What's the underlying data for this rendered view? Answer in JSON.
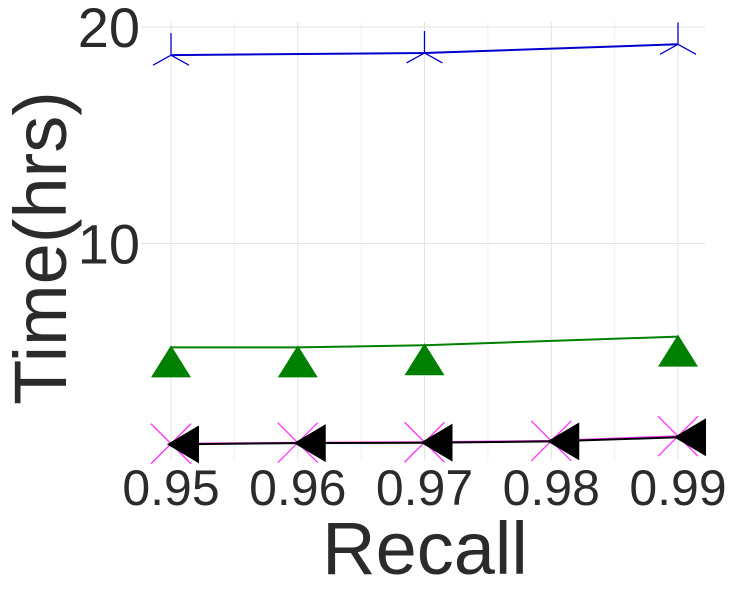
{
  "chart_data": {
    "type": "line",
    "title": "",
    "xlabel": "Recall",
    "ylabel": "Time(hrs)",
    "xlim": [
      0.95,
      0.99
    ],
    "ylim": [
      0,
      20
    ],
    "x_ticks": [
      "0.95",
      "0.96",
      "0.97",
      "0.98",
      "0.99"
    ],
    "y_ticks": [
      "10",
      "20"
    ],
    "grid": true,
    "legend": "none",
    "series": [
      {
        "color": "#0000cc",
        "marker": "tri-star",
        "x": [
          0.95,
          0.97,
          0.99
        ],
        "y": [
          18.7,
          18.8,
          19.2
        ]
      },
      {
        "color": "#008000",
        "marker": "triangle-up",
        "x": [
          0.95,
          0.96,
          0.97,
          0.99
        ],
        "y": [
          5.2,
          5.2,
          5.3,
          5.7
        ]
      },
      {
        "color": "#ff33ff",
        "marker": "x",
        "x": [
          0.95,
          0.96,
          0.97,
          0.98,
          0.99
        ],
        "y": [
          0.75,
          0.8,
          0.82,
          0.88,
          1.1
        ]
      },
      {
        "color": "#000000",
        "marker": "triangle-left",
        "x": [
          0.95,
          0.96,
          0.97,
          0.98,
          0.99
        ],
        "y": [
          0.72,
          0.78,
          0.8,
          0.86,
          1.05
        ]
      }
    ]
  }
}
